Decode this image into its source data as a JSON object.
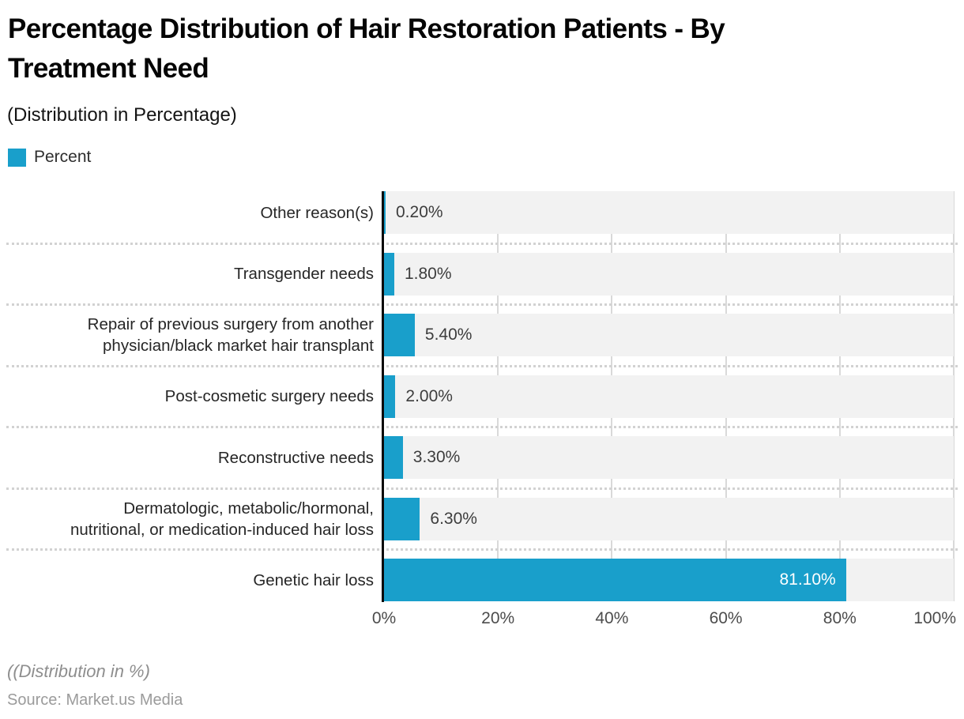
{
  "header": {
    "title": "Percentage Distribution of Hair Restoration Patients - By Treatment Need",
    "title_lines": [
      "Percentage Distribution of Hair Restoration Patients - By",
      "Treatment Need"
    ],
    "subtitle": "(Distribution in Percentage)",
    "legend": {
      "label": "Percent",
      "swatch_color": "#199fcb"
    }
  },
  "chart_data": {
    "type": "bar",
    "orientation": "horizontal",
    "series_name": "Percent",
    "categories": [
      "Other reason(s)",
      "Transgender needs",
      "Repair of previous surgery from another physician/black market hair transplant",
      "Post-cosmetic surgery needs",
      "Reconstructive needs",
      "Dermatologic, metabolic/hormonal, nutritional, or medication-induced hair loss",
      "Genetic hair loss"
    ],
    "category_lines": [
      [
        "Other reason(s)"
      ],
      [
        "Transgender needs"
      ],
      [
        "Repair of previous surgery from another",
        "physician/black market hair transplant"
      ],
      [
        "Post-cosmetic surgery needs"
      ],
      [
        "Reconstructive needs"
      ],
      [
        "Dermatologic, metabolic/hormonal,",
        "nutritional, or medication-induced hair loss"
      ],
      [
        "Genetic hair loss"
      ]
    ],
    "values": [
      0.2,
      1.8,
      5.4,
      2.0,
      3.3,
      6.3,
      81.1
    ],
    "value_labels": [
      "0.20%",
      "1.80%",
      "5.40%",
      "2.00%",
      "3.30%",
      "6.30%",
      "81.10%"
    ],
    "xlim": [
      0,
      100
    ],
    "x_ticks": [
      "0%",
      "20%",
      "40%",
      "60%",
      "80%",
      "100%"
    ],
    "grid": true,
    "legend_position": "top-left",
    "bar_color": "#199fcb",
    "track_color": "#f2f2f2",
    "grid_color": "#d9d9d9",
    "axis_color": "#0b0b0b"
  },
  "footer": {
    "note": "((Distribution in %)",
    "source": "Source: Market.us Media"
  }
}
